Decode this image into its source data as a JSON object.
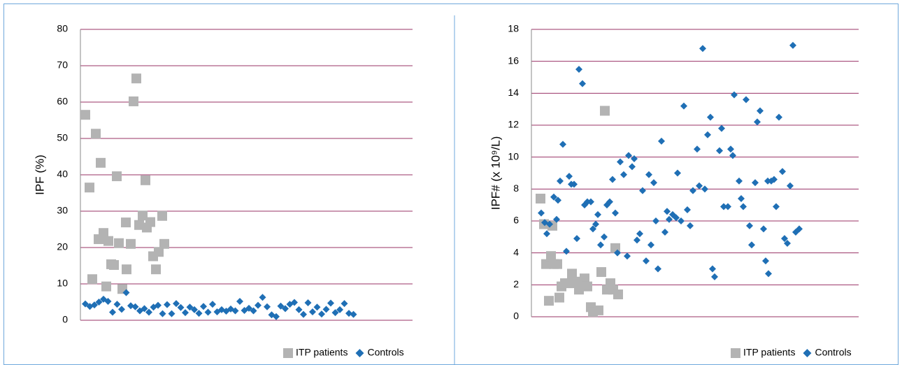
{
  "chart_data": [
    {
      "type": "scatter",
      "ylabel": "IPF (%)",
      "xlim": [
        0,
        475
      ],
      "ylim": [
        0,
        80
      ],
      "yticks": [
        0,
        10,
        20,
        30,
        40,
        50,
        60,
        70,
        80
      ],
      "grid": true,
      "grid_color": "#993366",
      "legend": "bottom-right",
      "series": [
        {
          "name": "ITP patients",
          "color": "#b3b3b3",
          "marker": "square",
          "x": [
            7,
            13,
            17,
            22,
            26,
            29,
            33,
            37,
            40,
            44,
            48,
            52,
            55,
            60,
            65,
            66,
            72,
            76,
            80,
            84,
            89,
            93,
            95,
            100,
            104,
            108,
            112,
            117,
            120
          ],
          "values": [
            56.5,
            36.5,
            11.3,
            51.3,
            22.3,
            43.3,
            24,
            9.3,
            21.8,
            15.4,
            15.2,
            39.6,
            21.2,
            8.6,
            26.9,
            14,
            21,
            60.2,
            66.5,
            26.2,
            28.8,
            38.5,
            25.5,
            27,
            17.6,
            14,
            18.8,
            28.7,
            21
          ]
        },
        {
          "name": "Controls",
          "color": "#1f6fb5",
          "marker": "diamond",
          "x": [
            7,
            13.5,
            20,
            26.5,
            33,
            39.5,
            46,
            52.5,
            59,
            65.5,
            72,
            78.5,
            85,
            91.5,
            98,
            104.5,
            111,
            117.5,
            124,
            130.5,
            137,
            143.5,
            150,
            156.5,
            163,
            169.5,
            176,
            182.5,
            189,
            195.5,
            202,
            208.5,
            215,
            221.5,
            228,
            234.5,
            241,
            247.5,
            254,
            260.5,
            267,
            273.5,
            280,
            286.5,
            293,
            299.5,
            306,
            312.5,
            319,
            325.5,
            332,
            338.5,
            345,
            351.5,
            358,
            364.5,
            371,
            377.5,
            384,
            390.5
          ],
          "values": [
            4.5,
            3.8,
            4.2,
            5,
            5.8,
            5.2,
            2.2,
            4.4,
            3,
            7.6,
            4,
            3.7,
            2.6,
            3.2,
            2.2,
            3.6,
            4.1,
            1.8,
            4.3,
            1.8,
            4.6,
            3.5,
            2.1,
            3.6,
            2.9,
            1.9,
            3.8,
            2.2,
            4.4,
            2.3,
            2.9,
            2.5,
            3.1,
            2.6,
            5.2,
            2.7,
            3.3,
            2.6,
            4.1,
            6.3,
            3.7,
            1.5,
            1,
            3.9,
            3.2,
            4.4,
            4.9,
            2.9,
            1.6,
            4.8,
            2.3,
            3.6,
            1.7,
            3,
            4.7,
            2.1,
            2.9,
            4.6,
            1.9,
            1.6
          ]
        }
      ]
    },
    {
      "type": "scatter",
      "ylabel": "IPF# (x 10⁹/L)",
      "xlim": [
        0,
        468
      ],
      "ylim": [
        0,
        18
      ],
      "yticks": [
        0,
        2,
        4,
        6,
        8,
        10,
        12,
        14,
        16,
        18
      ],
      "grid": true,
      "grid_color": "#993366",
      "legend": "bottom-right",
      "series": [
        {
          "name": "ITP patients",
          "color": "#b3b3b3",
          "marker": "square",
          "x": [
            13,
            18,
            21,
            25,
            28,
            30,
            32,
            37,
            40,
            43,
            48,
            52,
            58,
            62,
            68,
            72,
            76,
            80,
            85,
            88,
            96,
            100,
            105,
            108,
            113,
            117,
            120,
            124
          ],
          "values": [
            7.4,
            5.8,
            3.3,
            1,
            3.8,
            5.7,
            3.3,
            3.3,
            1.2,
            1.9,
            2.1,
            2.1,
            2.7,
            2.1,
            1.7,
            2.2,
            2.4,
            1.9,
            0.6,
            0.3,
            0.4,
            2.8,
            12.9,
            1.7,
            2.1,
            1.7,
            4.3,
            1.4
          ]
        },
        {
          "name": "Controls",
          "color": "#1f6fb5",
          "marker": "diamond",
          "x": [
            14,
            19,
            22,
            26,
            32,
            36,
            38,
            41,
            45,
            50,
            54,
            57,
            61,
            65,
            68,
            73,
            76,
            80,
            85,
            88,
            92,
            95,
            99,
            104,
            108,
            112,
            116,
            120,
            123,
            127,
            132,
            137,
            139,
            144,
            147,
            151,
            155,
            159,
            164,
            168,
            171,
            175,
            178,
            181,
            186,
            191,
            194,
            197,
            202,
            207,
            209,
            214,
            218,
            223,
            227,
            231,
            237,
            240,
            245,
            248,
            252,
            256,
            259,
            262,
            269,
            272,
            275,
            281,
            285,
            288,
            290,
            297,
            300,
            303,
            307,
            312,
            315,
            320,
            323,
            327,
            332,
            335,
            338,
            339,
            343,
            347,
            350,
            354,
            359,
            362,
            366,
            370,
            374,
            378,
            383
          ],
          "values": [
            6.5,
            5.9,
            5.2,
            5.8,
            7.5,
            6.1,
            7.3,
            8.5,
            10.8,
            4.1,
            8.8,
            8.3,
            8.3,
            4.9,
            15.5,
            14.6,
            7,
            7.2,
            7.2,
            5.5,
            5.8,
            6.4,
            4.5,
            5,
            7,
            7.2,
            8.6,
            6.5,
            4,
            9.7,
            8.9,
            3.8,
            10.1,
            9.4,
            9.9,
            4.8,
            5.2,
            7.9,
            3.5,
            8.9,
            4.5,
            8.4,
            6,
            3,
            11,
            5.3,
            6.6,
            6.1,
            6.4,
            6.2,
            9,
            6,
            13.2,
            6.7,
            5.7,
            7.9,
            10.5,
            8.2,
            16.8,
            8,
            11.4,
            12.5,
            3,
            2.5,
            10.4,
            11.8,
            6.9,
            6.9,
            10.5,
            10.1,
            13.9,
            8.5,
            7.4,
            6.9,
            13.6,
            5.7,
            4.5,
            8.4,
            12.2,
            12.9,
            5.5,
            3.5,
            8.5,
            2.7,
            8.5,
            8.6,
            6.9,
            12.5,
            9.1,
            4.9,
            4.6,
            8.2,
            17,
            5.3,
            5.5
          ]
        }
      ]
    }
  ]
}
